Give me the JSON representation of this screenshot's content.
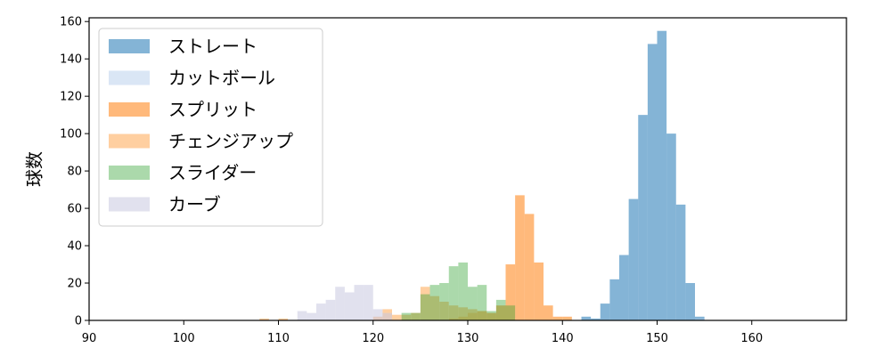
{
  "chart_data": {
    "type": "bar",
    "subtype": "overlapping-histogram",
    "title": "",
    "xlabel": "",
    "ylabel": "球数",
    "xlim": [
      90,
      170
    ],
    "ylim": [
      0,
      162
    ],
    "xticks": [
      90,
      100,
      110,
      120,
      130,
      140,
      150,
      160
    ],
    "yticks": [
      0,
      20,
      40,
      60,
      80,
      100,
      120,
      140,
      160
    ],
    "bin_width": 1,
    "grid": false,
    "legend_position": "upper-left",
    "series": [
      {
        "name": "ストレート",
        "color": "#1f77b4",
        "opacity": 0.55,
        "bin_starts": [
          142,
          143,
          144,
          145,
          146,
          147,
          148,
          149,
          150,
          151,
          152,
          153,
          154
        ],
        "counts": [
          2,
          1,
          9,
          22,
          35,
          65,
          110,
          148,
          155,
          100,
          62,
          20,
          2
        ]
      },
      {
        "name": "カットボール",
        "color": "#aec7e8",
        "opacity": 0.45,
        "bin_starts": [
          154
        ],
        "counts": [
          1
        ]
      },
      {
        "name": "スプリット",
        "color": "#ff7f0e",
        "opacity": 0.55,
        "bin_starts": [
          128,
          129,
          130,
          131,
          132,
          133,
          134,
          135,
          136,
          137,
          138,
          139,
          140
        ],
        "counts": [
          1,
          2,
          4,
          5,
          4,
          8,
          30,
          67,
          57,
          31,
          8,
          2,
          2
        ]
      },
      {
        "name": "チェンジアップ",
        "color": "#ffbb78",
        "opacity": 0.7,
        "bin_starts": [
          108,
          110,
          120,
          121,
          122,
          123,
          124,
          125,
          126,
          127,
          128,
          129,
          130,
          131,
          132,
          133
        ],
        "counts": [
          1,
          1,
          2,
          6,
          3,
          3,
          4,
          18,
          13,
          10,
          8,
          7,
          6,
          5,
          3,
          3
        ]
      },
      {
        "name": "スライダー",
        "color": "#2ca02c",
        "opacity": 0.4,
        "bin_starts": [
          123,
          124,
          125,
          126,
          127,
          128,
          129,
          130,
          131,
          132,
          133,
          134
        ],
        "counts": [
          4,
          4,
          14,
          19,
          20,
          29,
          31,
          18,
          19,
          5,
          11,
          8
        ]
      },
      {
        "name": "カーブ",
        "color": "#c9c8e0",
        "opacity": 0.55,
        "bin_starts": [
          112,
          113,
          114,
          115,
          116,
          117,
          118,
          119,
          120,
          121
        ],
        "counts": [
          5,
          4,
          9,
          11,
          18,
          15,
          19,
          19,
          6,
          4
        ]
      }
    ]
  }
}
